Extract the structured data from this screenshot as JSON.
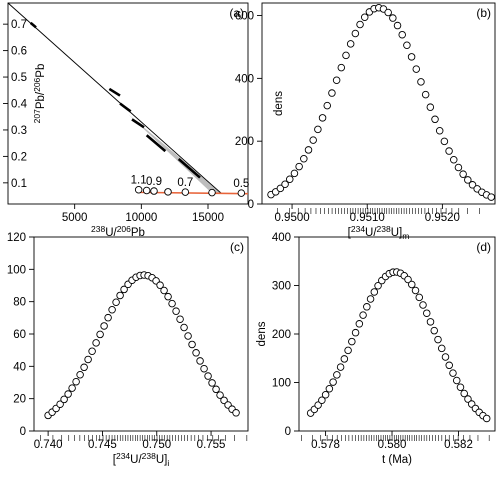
{
  "chart_data": [
    {
      "panel": "(a)",
      "type": "line",
      "xlabel": {
        "pre": "",
        "sup": "238",
        "mid": "U/",
        "sup2": "206",
        "post": "Pb"
      },
      "ylabel": {
        "pre": "",
        "sup": "207",
        "mid": "Pb/",
        "sup2": "206",
        "post": "Pb"
      },
      "xlim": [
        0,
        18000
      ],
      "ylim": [
        0.02,
        0.78
      ],
      "xticks": [
        5000,
        10000,
        15000
      ],
      "yticks": [
        0.1,
        0.2,
        0.3,
        0.4,
        0.5,
        0.6,
        0.7
      ],
      "isochron": {
        "x": [
          0,
          16000
        ],
        "y": [
          0.78,
          0.06
        ]
      },
      "concordia_color": "#e8643a",
      "concordia": {
        "x": [
          9800,
          18000
        ],
        "y": [
          0.064,
          0.059
        ]
      },
      "age_markers": [
        {
          "label": "1.1",
          "x": 9800,
          "y": 0.074
        },
        {
          "label": "",
          "x": 10400,
          "y": 0.071
        },
        {
          "label": "0.9",
          "x": 10950,
          "y": 0.069
        },
        {
          "label": "",
          "x": 12000,
          "y": 0.066
        },
        {
          "label": "0.7",
          "x": 13300,
          "y": 0.065
        },
        {
          "label": "",
          "x": 15300,
          "y": 0.063
        },
        {
          "label": "0.5",
          "x": 17500,
          "y": 0.061
        }
      ],
      "data_segments": [
        {
          "x": [
            1700,
            2100
          ],
          "y": [
            0.705,
            0.688
          ]
        },
        {
          "x": [
            7600,
            8400
          ],
          "y": [
            0.455,
            0.43
          ]
        },
        {
          "x": [
            8400,
            9200
          ],
          "y": [
            0.4,
            0.37
          ]
        },
        {
          "x": [
            9300,
            10200
          ],
          "y": [
            0.34,
            0.31
          ]
        },
        {
          "x": [
            10400,
            11800
          ],
          "y": [
            0.28,
            0.22
          ]
        },
        {
          "x": [
            12800,
            14400
          ],
          "y": [
            0.19,
            0.12
          ]
        }
      ]
    },
    {
      "panel": "(b)",
      "type": "scatter",
      "xlabel": {
        "pre": "[",
        "sup": "234",
        "mid": "U/",
        "sup2": "238",
        "post": "U]",
        "sub": "m"
      },
      "ylabel": "dens",
      "xlim": [
        0.9496,
        0.9527
      ],
      "ylim": [
        0,
        640
      ],
      "xticks": [
        0.95,
        0.951,
        0.952
      ],
      "xticklabels": [
        "0.9500",
        "0.9510",
        "0.9520"
      ],
      "yticks": [
        0,
        200,
        400,
        600
      ],
      "curve": {
        "mean": 0.95115,
        "sd": 0.00058,
        "peak": 625,
        "n": 48,
        "xmin": 0.94972,
        "xmax": 0.95265
      }
    },
    {
      "panel": "(c)",
      "type": "scatter",
      "xlabel": {
        "pre": "[",
        "sup": "234",
        "mid": "U/",
        "sup2": "238",
        "post": "U]",
        "sub": "i"
      },
      "ylabel": "dens",
      "xlim": [
        0.7387,
        0.7584
      ],
      "ylim": [
        0,
        120
      ],
      "xticks": [
        0.74,
        0.745,
        0.75,
        0.755
      ],
      "xticklabels": [
        "0.740",
        "0.745",
        "0.750",
        "0.755"
      ],
      "yticks": [
        0,
        20,
        40,
        60,
        80,
        100,
        120
      ],
      "curve": {
        "mean": 0.7488,
        "sd": 0.0041,
        "peak": 96.5,
        "n": 48,
        "xmin": 0.74,
        "xmax": 0.7573
      }
    },
    {
      "panel": "(d)",
      "type": "scatter",
      "xlabel": "t (Ma)",
      "ylabel": "dens",
      "xlim": [
        0.5772,
        0.5831
      ],
      "ylim": [
        0,
        400
      ],
      "xticks": [
        0.578,
        0.58,
        0.582
      ],
      "xticklabels": [
        "0.578",
        "0.580",
        "0.582"
      ],
      "yticks": [
        0,
        100,
        200,
        300,
        400
      ],
      "curve": {
        "mean": 0.5801,
        "sd": 0.00122,
        "peak": 328,
        "n": 48,
        "xmin": 0.57755,
        "xmax": 0.58285
      }
    }
  ]
}
